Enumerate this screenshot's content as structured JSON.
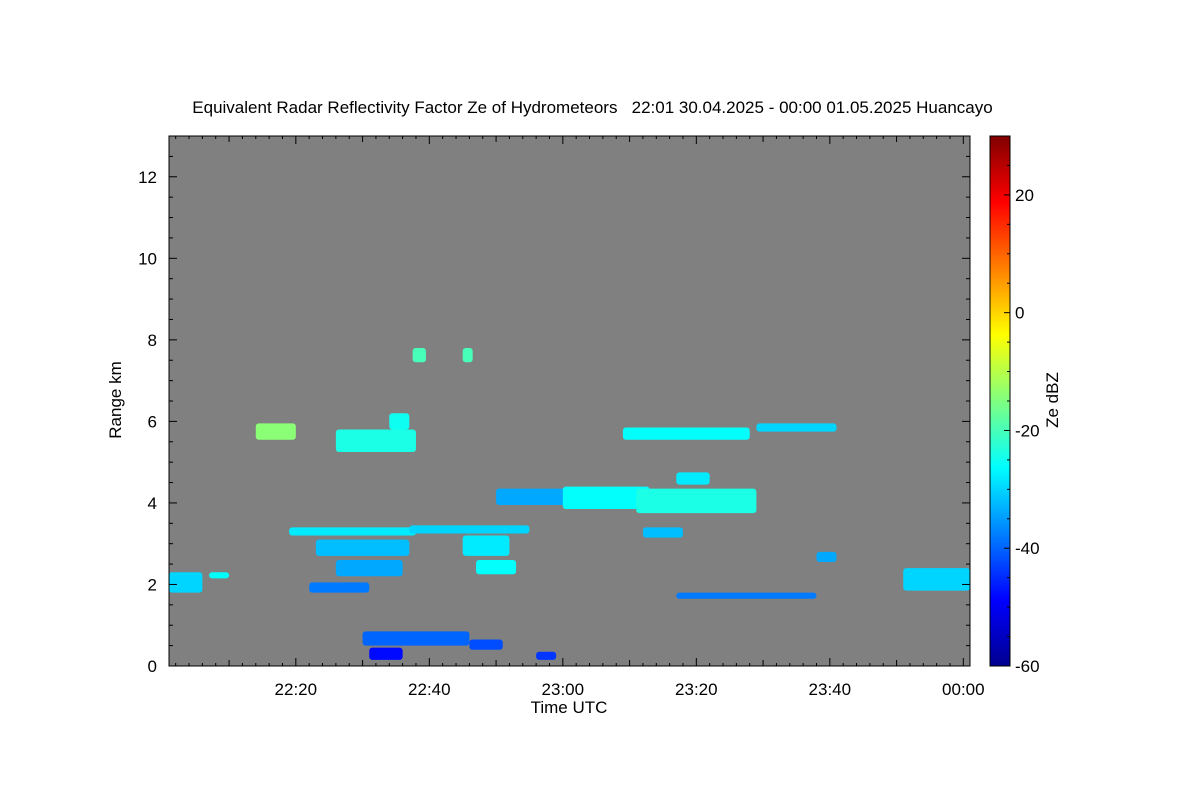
{
  "chart_data": {
    "type": "heatmap",
    "title": "Equivalent Radar Reflectivity Factor Ze of Hydrometeors   22:01 30.04.2025 - 00:00 01.05.2025 Huancayo",
    "xlabel": "Time UTC",
    "ylabel": "Range km",
    "x_ticks": [
      "22:20",
      "22:40",
      "23:00",
      "23:20",
      "23:40",
      "00:00"
    ],
    "x_tick_minutes": [
      20,
      40,
      60,
      80,
      100,
      120
    ],
    "xlim_minutes": [
      1,
      121
    ],
    "y_ticks": [
      0,
      2,
      4,
      6,
      8,
      10,
      12
    ],
    "ylim": [
      0,
      13
    ],
    "background_color": "#808080",
    "colorbar": {
      "label": "Ze dBZ",
      "range": [
        -60,
        30
      ],
      "ticks": [
        -60,
        -40,
        -20,
        0,
        20
      ],
      "colormap": "jet",
      "stops": [
        "#00008f",
        "#0000ff",
        "#0080ff",
        "#00ffff",
        "#80ff80",
        "#ffff00",
        "#ff8000",
        "#ff0000",
        "#800000"
      ]
    },
    "echoes": [
      {
        "t0": 1,
        "t1": 6,
        "r0": 1.8,
        "r1": 2.3,
        "ze": -30
      },
      {
        "t0": 7,
        "t1": 10,
        "r0": 2.15,
        "r1": 2.3,
        "ze": -26
      },
      {
        "t0": 14,
        "t1": 20,
        "r0": 5.55,
        "r1": 5.95,
        "ze": -14
      },
      {
        "t0": 26,
        "t1": 38,
        "r0": 5.25,
        "r1": 5.8,
        "ze": -24
      },
      {
        "t0": 34,
        "t1": 37,
        "r0": 5.8,
        "r1": 6.2,
        "ze": -25
      },
      {
        "t0": 37.5,
        "t1": 39.5,
        "r0": 7.45,
        "r1": 7.8,
        "ze": -20
      },
      {
        "t0": 45,
        "t1": 46.5,
        "r0": 7.45,
        "r1": 7.8,
        "ze": -20
      },
      {
        "t0": 19,
        "t1": 38,
        "r0": 3.2,
        "r1": 3.4,
        "ze": -28
      },
      {
        "t0": 23,
        "t1": 37,
        "r0": 2.7,
        "r1": 3.1,
        "ze": -32
      },
      {
        "t0": 26,
        "t1": 36,
        "r0": 2.2,
        "r1": 2.6,
        "ze": -34
      },
      {
        "t0": 22,
        "t1": 31,
        "r0": 1.8,
        "r1": 2.05,
        "ze": -38
      },
      {
        "t0": 37,
        "t1": 55,
        "r0": 3.25,
        "r1": 3.45,
        "ze": -30
      },
      {
        "t0": 45,
        "t1": 52,
        "r0": 2.7,
        "r1": 3.2,
        "ze": -28
      },
      {
        "t0": 47,
        "t1": 53,
        "r0": 2.25,
        "r1": 2.6,
        "ze": -26
      },
      {
        "t0": 30,
        "t1": 46,
        "r0": 0.5,
        "r1": 0.85,
        "ze": -40
      },
      {
        "t0": 46,
        "t1": 51,
        "r0": 0.4,
        "r1": 0.65,
        "ze": -42
      },
      {
        "t0": 31,
        "t1": 36,
        "r0": 0.15,
        "r1": 0.45,
        "ze": -48
      },
      {
        "t0": 56,
        "t1": 59,
        "r0": 0.15,
        "r1": 0.35,
        "ze": -44
      },
      {
        "t0": 50,
        "t1": 61,
        "r0": 3.95,
        "r1": 4.35,
        "ze": -34
      },
      {
        "t0": 60,
        "t1": 73,
        "r0": 3.85,
        "r1": 4.4,
        "ze": -26
      },
      {
        "t0": 71,
        "t1": 89,
        "r0": 3.75,
        "r1": 4.35,
        "ze": -24
      },
      {
        "t0": 77,
        "t1": 82,
        "r0": 4.45,
        "r1": 4.75,
        "ze": -28
      },
      {
        "t0": 72,
        "t1": 78,
        "r0": 3.15,
        "r1": 3.4,
        "ze": -32
      },
      {
        "t0": 69,
        "t1": 88,
        "r0": 5.55,
        "r1": 5.85,
        "ze": -26
      },
      {
        "t0": 89,
        "t1": 101,
        "r0": 5.75,
        "r1": 5.95,
        "ze": -30
      },
      {
        "t0": 77,
        "t1": 98,
        "r0": 1.65,
        "r1": 1.8,
        "ze": -38
      },
      {
        "t0": 98,
        "t1": 101,
        "r0": 2.55,
        "r1": 2.8,
        "ze": -34
      },
      {
        "t0": 111,
        "t1": 121,
        "r0": 1.85,
        "r1": 2.4,
        "ze": -30
      }
    ]
  }
}
